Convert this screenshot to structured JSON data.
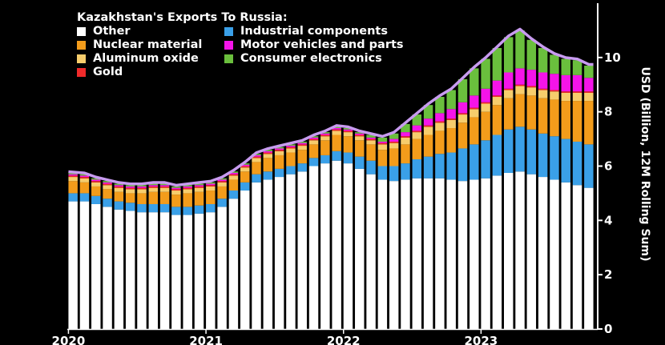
{
  "chart_data": {
    "type": "bar",
    "stacked": true,
    "title": "Kazakhstan's Exports To Russia:",
    "ylabel": "USD (Billion, 12M Rolling Sum)",
    "ylim": [
      0,
      12
    ],
    "yticks": [
      0,
      2,
      4,
      6,
      8,
      10
    ],
    "y_axis_side": "right",
    "x_tick_labels": [
      "2020",
      "2021",
      "2022",
      "2023"
    ],
    "x_tick_index": [
      0,
      12,
      24,
      36
    ],
    "legend_placement": "top-left",
    "outline_color": "#c89bf0",
    "series": [
      {
        "name": "Other",
        "color": "#ffffff",
        "values": [
          4.7,
          4.7,
          4.6,
          4.5,
          4.4,
          4.35,
          4.3,
          4.3,
          4.3,
          4.2,
          4.2,
          4.25,
          4.3,
          4.5,
          4.8,
          5.1,
          5.4,
          5.5,
          5.6,
          5.7,
          5.8,
          6.0,
          6.1,
          6.2,
          6.1,
          5.9,
          5.7,
          5.5,
          5.45,
          5.5,
          5.55,
          5.55,
          5.55,
          5.5,
          5.45,
          5.5,
          5.55,
          5.65,
          5.75,
          5.8,
          5.7,
          5.6,
          5.5,
          5.4,
          5.3,
          5.2
        ]
      },
      {
        "name": "Industrial components",
        "color": "#3aa0e8",
        "values": [
          0.3,
          0.3,
          0.3,
          0.3,
          0.3,
          0.3,
          0.3,
          0.3,
          0.3,
          0.3,
          0.3,
          0.3,
          0.3,
          0.3,
          0.3,
          0.3,
          0.3,
          0.3,
          0.3,
          0.3,
          0.3,
          0.3,
          0.3,
          0.35,
          0.4,
          0.45,
          0.5,
          0.5,
          0.55,
          0.6,
          0.7,
          0.8,
          0.9,
          1.0,
          1.2,
          1.3,
          1.4,
          1.5,
          1.6,
          1.65,
          1.65,
          1.6,
          1.6,
          1.6,
          1.6,
          1.6
        ]
      },
      {
        "name": "Nuclear material",
        "color": "#f39c1b",
        "values": [
          0.45,
          0.4,
          0.35,
          0.35,
          0.35,
          0.35,
          0.4,
          0.45,
          0.45,
          0.45,
          0.5,
          0.5,
          0.5,
          0.45,
          0.4,
          0.4,
          0.45,
          0.5,
          0.5,
          0.5,
          0.5,
          0.5,
          0.55,
          0.6,
          0.6,
          0.6,
          0.6,
          0.6,
          0.65,
          0.7,
          0.75,
          0.8,
          0.85,
          0.9,
          0.95,
          1.0,
          1.05,
          1.1,
          1.15,
          1.2,
          1.25,
          1.3,
          1.35,
          1.4,
          1.5,
          1.6
        ]
      },
      {
        "name": "Aluminum oxide",
        "color": "#f7cd6c",
        "values": [
          0.15,
          0.15,
          0.15,
          0.15,
          0.15,
          0.15,
          0.15,
          0.15,
          0.15,
          0.15,
          0.15,
          0.15,
          0.15,
          0.15,
          0.15,
          0.15,
          0.15,
          0.15,
          0.15,
          0.15,
          0.15,
          0.15,
          0.15,
          0.15,
          0.15,
          0.15,
          0.15,
          0.2,
          0.2,
          0.25,
          0.25,
          0.3,
          0.3,
          0.3,
          0.3,
          0.3,
          0.3,
          0.3,
          0.3,
          0.3,
          0.3,
          0.3,
          0.3,
          0.3,
          0.3,
          0.3
        ]
      },
      {
        "name": "Gold",
        "color": "#f02a2a",
        "values": [
          0.05,
          0.05,
          0.05,
          0.05,
          0.05,
          0.05,
          0.05,
          0.05,
          0.05,
          0.05,
          0.05,
          0.05,
          0.05,
          0.05,
          0.05,
          0.05,
          0.05,
          0.05,
          0.05,
          0.05,
          0.05,
          0.05,
          0.05,
          0.05,
          0.05,
          0.05,
          0.05,
          0.05,
          0.05,
          0.05,
          0.05,
          0.05,
          0.05,
          0.05,
          0.05,
          0.05,
          0.05,
          0.05,
          0.05,
          0.05,
          0.05,
          0.05,
          0.05,
          0.05,
          0.05,
          0.05
        ]
      },
      {
        "name": "Motor vehicles and parts",
        "color": "#f514e9",
        "values": [
          0.05,
          0.05,
          0.05,
          0.05,
          0.05,
          0.05,
          0.05,
          0.05,
          0.05,
          0.05,
          0.05,
          0.05,
          0.05,
          0.05,
          0.05,
          0.05,
          0.05,
          0.05,
          0.05,
          0.05,
          0.05,
          0.05,
          0.05,
          0.05,
          0.05,
          0.05,
          0.05,
          0.05,
          0.1,
          0.15,
          0.2,
          0.25,
          0.3,
          0.35,
          0.4,
          0.45,
          0.5,
          0.55,
          0.6,
          0.6,
          0.6,
          0.6,
          0.6,
          0.6,
          0.6,
          0.5
        ]
      },
      {
        "name": "Consumer electronics",
        "color": "#6abf3d",
        "values": [
          0.05,
          0.05,
          0.05,
          0.05,
          0.05,
          0.05,
          0.05,
          0.05,
          0.05,
          0.05,
          0.05,
          0.05,
          0.05,
          0.05,
          0.05,
          0.05,
          0.05,
          0.05,
          0.05,
          0.05,
          0.05,
          0.05,
          0.05,
          0.05,
          0.05,
          0.05,
          0.1,
          0.15,
          0.2,
          0.3,
          0.4,
          0.5,
          0.6,
          0.7,
          0.85,
          1.0,
          1.1,
          1.2,
          1.3,
          1.4,
          1.1,
          0.9,
          0.7,
          0.6,
          0.55,
          0.45
        ]
      }
    ]
  }
}
